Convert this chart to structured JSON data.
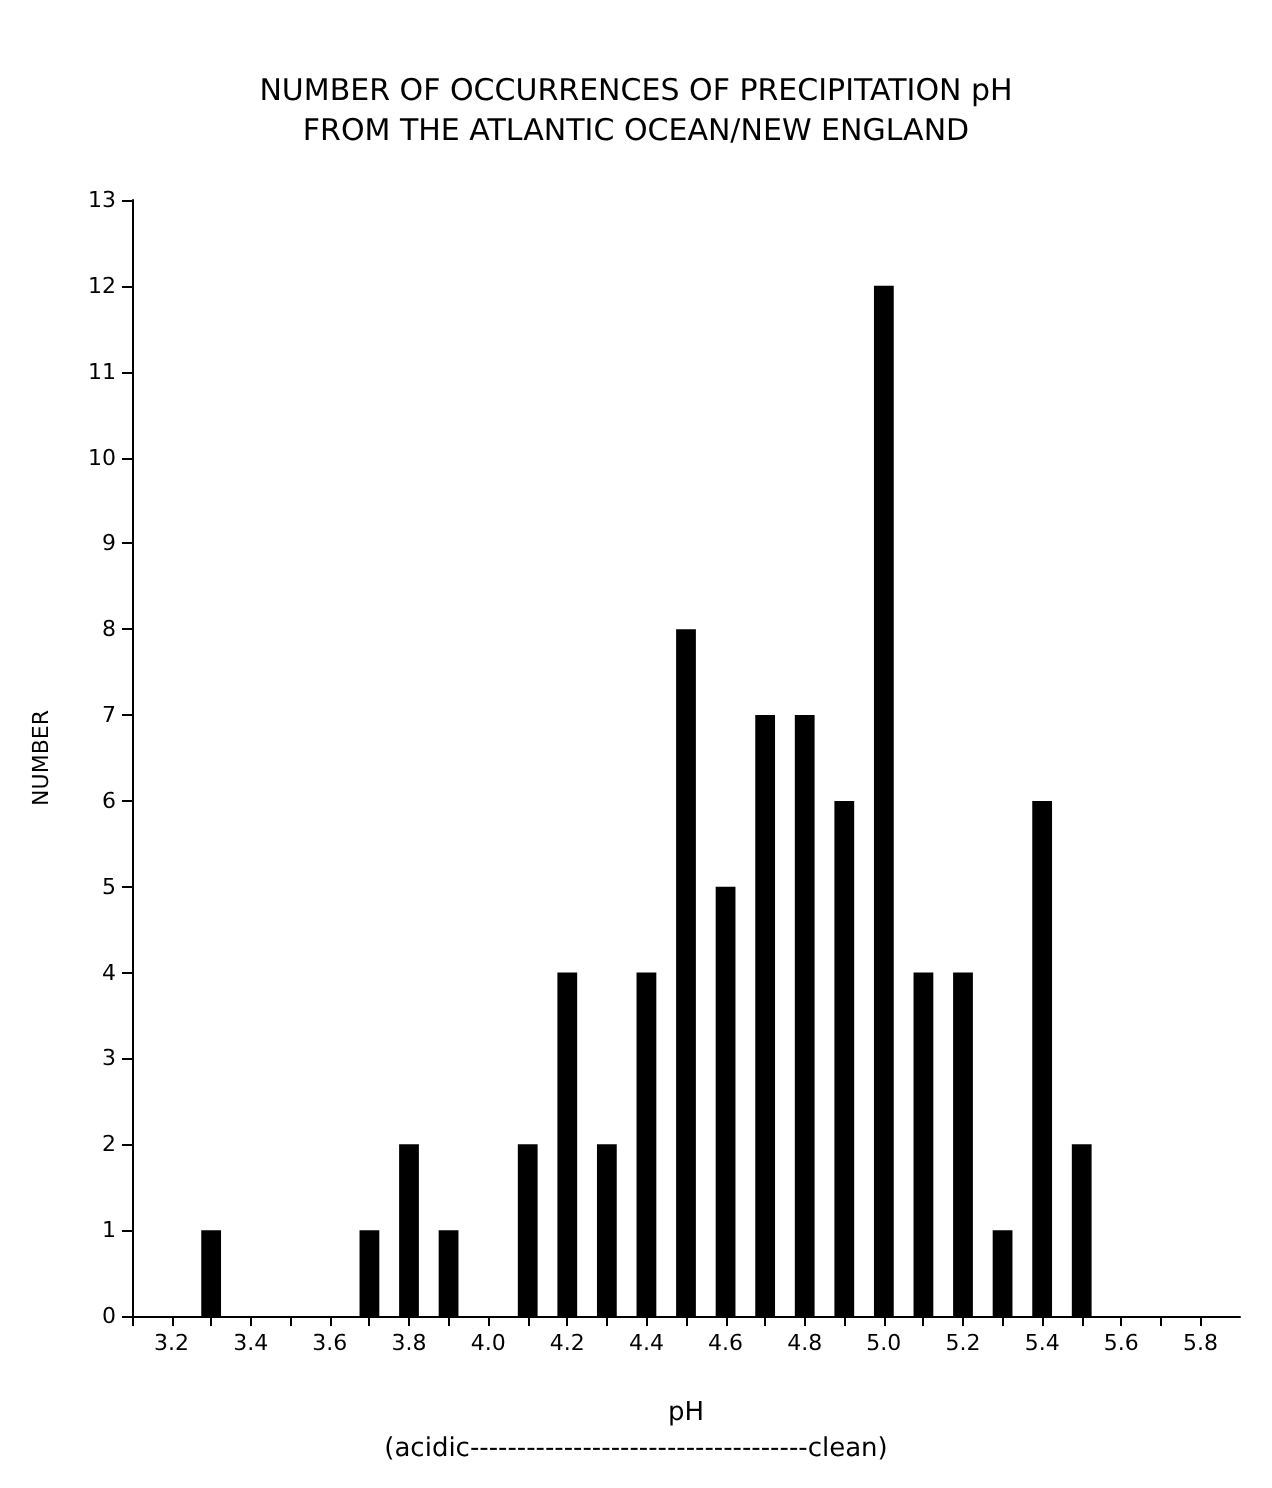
{
  "chart_data": {
    "type": "bar",
    "title": "NUMBER OF OCCURRENCES OF PRECIPITATION pH\nFROM THE ATLANTIC OCEAN/NEW ENGLAND",
    "xlabel": "pH",
    "ylabel": "NUMBER",
    "annotations": [
      "(acidic------------------------------------clean)"
    ],
    "x": [
      3.3,
      3.7,
      3.8,
      3.9,
      4.1,
      4.2,
      4.3,
      4.4,
      4.5,
      4.6,
      4.7,
      4.8,
      4.9,
      5.0,
      5.1,
      5.2,
      5.3,
      5.4,
      5.5
    ],
    "values": [
      1,
      1,
      2,
      1,
      2,
      4,
      2,
      4,
      8,
      5,
      7,
      7,
      6,
      12,
      4,
      4,
      1,
      6,
      2
    ],
    "color": "#000000",
    "xlim": [
      3.1,
      5.9
    ],
    "xticks": [
      {
        "value": 3.1,
        "label": null
      },
      {
        "value": 3.2,
        "label": "3.2"
      },
      {
        "value": 3.3,
        "label": null
      },
      {
        "value": 3.4,
        "label": "3.4"
      },
      {
        "value": 3.5,
        "label": null
      },
      {
        "value": 3.6,
        "label": "3.6"
      },
      {
        "value": 3.7,
        "label": null
      },
      {
        "value": 3.8,
        "label": "3.8"
      },
      {
        "value": 3.9,
        "label": null
      },
      {
        "value": 4.0,
        "label": "4.0"
      },
      {
        "value": 4.1,
        "label": null
      },
      {
        "value": 4.2,
        "label": "4.2"
      },
      {
        "value": 4.3,
        "label": null
      },
      {
        "value": 4.4,
        "label": "4.4"
      },
      {
        "value": 4.5,
        "label": null
      },
      {
        "value": 4.6,
        "label": "4.6"
      },
      {
        "value": 4.7,
        "label": null
      },
      {
        "value": 4.8,
        "label": "4.8"
      },
      {
        "value": 4.9,
        "label": null
      },
      {
        "value": 5.0,
        "label": "5.0"
      },
      {
        "value": 5.1,
        "label": null
      },
      {
        "value": 5.2,
        "label": "5.2"
      },
      {
        "value": 5.3,
        "label": null
      },
      {
        "value": 5.4,
        "label": "5.4"
      },
      {
        "value": 5.5,
        "label": null
      },
      {
        "value": 5.6,
        "label": "5.6"
      },
      {
        "value": 5.7,
        "label": null
      },
      {
        "value": 5.8,
        "label": "5.8"
      }
    ],
    "ylim": [
      0,
      13
    ],
    "yticks": [
      0,
      1,
      2,
      3,
      4,
      5,
      6,
      7,
      8,
      9,
      10,
      11,
      12,
      13
    ],
    "grid": false
  }
}
